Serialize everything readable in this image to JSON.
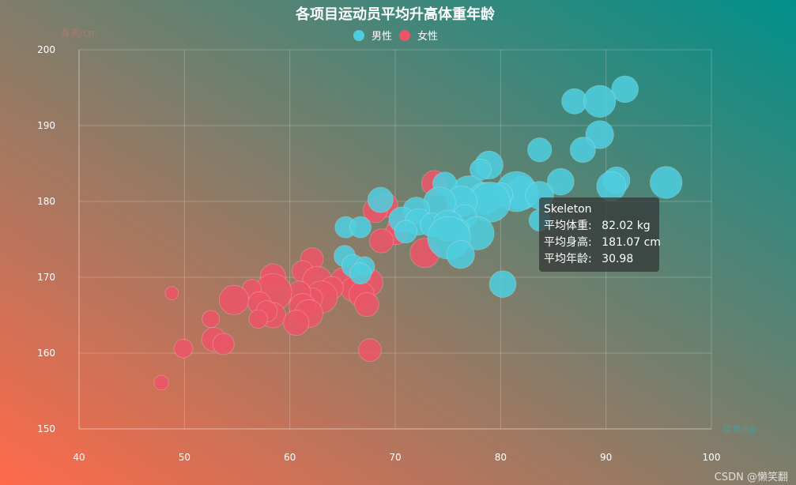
{
  "chart_data": {
    "type": "scatter",
    "subtype": "bubble",
    "title": "各项目运动员平均升高体重年龄",
    "xlabel": "体重/kg",
    "ylabel": "身高/cm",
    "xlim": [
      40,
      100
    ],
    "ylim": [
      150,
      200
    ],
    "xticks": [
      40,
      50,
      60,
      70,
      80,
      90,
      100
    ],
    "yticks": [
      150,
      160,
      170,
      180,
      190,
      200
    ],
    "grid": true,
    "legend_position": "top-center",
    "colors": {
      "male": "#4ecdde",
      "female": "#ec5568",
      "bg_start": "#ff6a4a",
      "bg_end": "#00908a"
    },
    "series": [
      {
        "name": "男性",
        "points": [
          [
            91.8,
            194.8,
            26
          ],
          [
            87.0,
            193.2,
            25
          ],
          [
            89.4,
            193.2,
            30
          ],
          [
            89.4,
            188.8,
            27
          ],
          [
            87.8,
            186.8,
            25
          ],
          [
            83.7,
            186.8,
            24
          ],
          [
            78.9,
            184.8,
            27
          ],
          [
            78.1,
            184.2,
            22
          ],
          [
            85.7,
            182.6,
            26
          ],
          [
            91.0,
            182.8,
            26
          ],
          [
            95.7,
            182.5,
            30
          ],
          [
            90.5,
            182.0,
            28
          ],
          [
            82.0,
            181.1,
            31
          ],
          [
            81.5,
            181.3,
            36
          ],
          [
            80.0,
            180.9,
            24
          ],
          [
            83.7,
            180.8,
            27
          ],
          [
            77.0,
            181.0,
            33
          ],
          [
            78.5,
            180.4,
            30
          ],
          [
            79.0,
            179.9,
            36
          ],
          [
            74.7,
            182.3,
            24
          ],
          [
            76.3,
            180.0,
            29
          ],
          [
            74.2,
            179.8,
            30
          ],
          [
            72.0,
            178.8,
            26
          ],
          [
            68.6,
            180.2,
            25
          ],
          [
            70.6,
            177.6,
            25
          ],
          [
            72.2,
            177.3,
            26
          ],
          [
            73.5,
            176.9,
            24
          ],
          [
            76.6,
            178.0,
            24
          ],
          [
            77.8,
            175.8,
            31
          ],
          [
            76.0,
            176.3,
            22
          ],
          [
            75.0,
            176.8,
            29
          ],
          [
            75.1,
            175.2,
            38
          ],
          [
            76.2,
            173.0,
            27
          ],
          [
            71.0,
            176.0,
            23
          ],
          [
            83.7,
            177.5,
            22
          ],
          [
            80.2,
            169.1,
            26
          ],
          [
            65.3,
            176.6,
            22
          ],
          [
            66.7,
            176.6,
            22
          ],
          [
            65.2,
            172.8,
            22
          ],
          [
            66.0,
            171.5,
            23
          ],
          [
            67.1,
            171.4,
            21
          ],
          [
            66.7,
            170.5,
            22
          ]
        ]
      },
      {
        "name": "女性",
        "points": [
          [
            73.7,
            182.4,
            25
          ],
          [
            69.1,
            179.5,
            24
          ],
          [
            68.1,
            178.8,
            24
          ],
          [
            70.3,
            176.8,
            22
          ],
          [
            70.1,
            175.8,
            23
          ],
          [
            68.7,
            174.8,
            24
          ],
          [
            72.8,
            173.2,
            28
          ],
          [
            62.1,
            172.4,
            23
          ],
          [
            61.2,
            170.8,
            22
          ],
          [
            58.4,
            170.1,
            25
          ],
          [
            62.6,
            169.5,
            28
          ],
          [
            67.5,
            169.3,
            27
          ],
          [
            65.1,
            169.6,
            25
          ],
          [
            66.0,
            168.4,
            24
          ],
          [
            64.0,
            168.6,
            23
          ],
          [
            66.8,
            167.7,
            25
          ],
          [
            63.0,
            167.4,
            30
          ],
          [
            62.1,
            167.2,
            22
          ],
          [
            60.9,
            168.0,
            23
          ],
          [
            58.4,
            168.0,
            34
          ],
          [
            56.4,
            168.5,
            20
          ],
          [
            54.7,
            167.0,
            28
          ],
          [
            57.1,
            166.6,
            23
          ],
          [
            61.2,
            166.1,
            26
          ],
          [
            67.3,
            166.4,
            24
          ],
          [
            61.8,
            165.2,
            27
          ],
          [
            58.4,
            165.0,
            25
          ],
          [
            57.8,
            165.5,
            22
          ],
          [
            57.0,
            164.5,
            20
          ],
          [
            60.6,
            164.0,
            25
          ],
          [
            48.8,
            167.9,
            16
          ],
          [
            52.5,
            164.5,
            19
          ],
          [
            52.8,
            161.8,
            24
          ],
          [
            53.7,
            161.2,
            22
          ],
          [
            49.9,
            160.6,
            20
          ],
          [
            67.6,
            160.4,
            23
          ],
          [
            47.8,
            156.1,
            17
          ]
        ]
      }
    ],
    "tooltip": {
      "name": "Skeleton",
      "weight_label": "平均体重:",
      "weight_value": "82.02 kg",
      "height_label": "平均身高:",
      "height_value": "181.07 cm",
      "age_label": "平均年龄:",
      "age_value": "30.98"
    }
  },
  "watermark": "CSDN @懒笑翻"
}
